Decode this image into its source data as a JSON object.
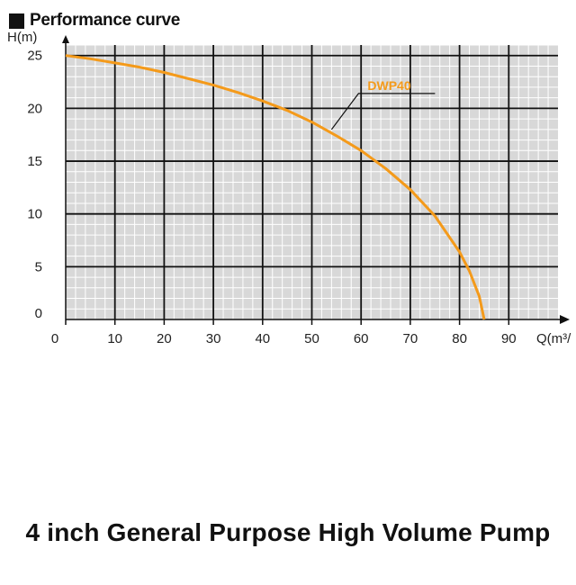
{
  "header": {
    "title": "Performance curve"
  },
  "caption": "4 inch General Purpose High Volume Pump",
  "chart_data": {
    "type": "line",
    "title": "Performance curve",
    "xlabel": "Q(m³/",
    "ylabel": "H(m)",
    "xlim": [
      0,
      100
    ],
    "ylim": [
      0,
      26
    ],
    "x_ticks": [
      0,
      10,
      20,
      30,
      40,
      50,
      60,
      70,
      80,
      90
    ],
    "y_ticks": [
      0,
      5,
      10,
      15,
      20,
      25
    ],
    "grid": true,
    "series": [
      {
        "name": "DWP40",
        "color": "#f49a1a",
        "x": [
          0,
          5,
          10,
          15,
          20,
          25,
          30,
          35,
          40,
          45,
          50,
          55,
          60,
          65,
          70,
          75,
          80,
          82,
          84,
          85
        ],
        "y": [
          25,
          24.7,
          24.3,
          23.9,
          23.4,
          22.8,
          22.2,
          21.5,
          20.7,
          19.8,
          18.7,
          17.4,
          16.0,
          14.3,
          12.3,
          9.8,
          6.4,
          4.6,
          2.2,
          0
        ]
      }
    ],
    "label_anchor": {
      "x": 54,
      "y": 18
    }
  }
}
